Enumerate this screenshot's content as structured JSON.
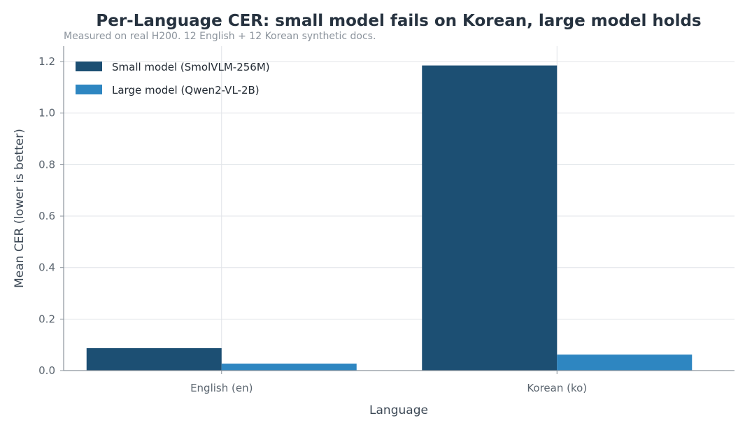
{
  "chart_data": {
    "type": "bar",
    "title": "Per-Language CER: small model fails on Korean, large model holds",
    "subtitle": "Measured on real H200. 12 English + 12 Korean synthetic docs.",
    "xlabel": "Language",
    "ylabel": "Mean CER (lower is better)",
    "categories": [
      "English (en)",
      "Korean (ko)"
    ],
    "series": [
      {
        "name": "Small model (SmolVLM-256M)",
        "color": "#1c4f73",
        "values": [
          0.087,
          1.185
        ]
      },
      {
        "name": "Large model (Qwen2-VL-2B)",
        "color": "#2e86c1",
        "values": [
          0.027,
          0.062
        ]
      }
    ],
    "ylim": [
      0,
      1.26
    ],
    "yticks": [
      0.0,
      0.2,
      0.4,
      0.6,
      0.8,
      1.0,
      1.2
    ],
    "ytick_labels": [
      "0.0",
      "0.2",
      "0.4",
      "0.6",
      "0.8",
      "1.0",
      "1.2"
    ],
    "grid": true,
    "legend_position": "top-left"
  }
}
